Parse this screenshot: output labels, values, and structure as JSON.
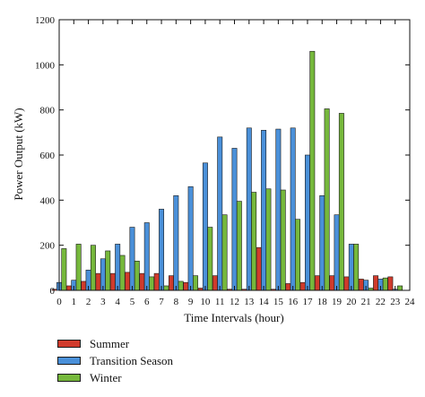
{
  "chart_data": {
    "type": "bar",
    "xlabel": "Time Intervals (hour)",
    "ylabel": "Power Output (kW)",
    "ylim": [
      0,
      1200
    ],
    "xlim": [
      0,
      24
    ],
    "yticks": [
      0,
      200,
      400,
      600,
      800,
      1000,
      1200
    ],
    "xticks": [
      0,
      1,
      2,
      3,
      4,
      5,
      6,
      7,
      8,
      9,
      10,
      11,
      12,
      13,
      14,
      15,
      16,
      17,
      18,
      19,
      20,
      21,
      22,
      23,
      24
    ],
    "legend_position": "bottom-left, below axes",
    "x": [
      0,
      1,
      2,
      3,
      4,
      5,
      6,
      7,
      8,
      9,
      10,
      11,
      12,
      13,
      14,
      15,
      16,
      17,
      18,
      19,
      20,
      21,
      22,
      23
    ],
    "series": [
      {
        "name": "Summer",
        "color": "#d03b2c",
        "values": [
          5,
          20,
          40,
          75,
          75,
          80,
          75,
          75,
          65,
          35,
          10,
          65,
          5,
          5,
          190,
          5,
          30,
          35,
          65,
          65,
          60,
          50,
          65,
          60
        ]
      },
      {
        "name": "Transition Season",
        "color": "#4a90d9",
        "values": [
          35,
          45,
          90,
          140,
          205,
          280,
          300,
          360,
          420,
          460,
          565,
          680,
          630,
          720,
          710,
          715,
          720,
          600,
          420,
          335,
          205,
          45,
          50,
          5
        ]
      },
      {
        "name": "Winter",
        "color": "#76b83c",
        "values": [
          185,
          205,
          200,
          175,
          155,
          130,
          60,
          20,
          40,
          65,
          280,
          335,
          395,
          435,
          450,
          445,
          315,
          1060,
          805,
          785,
          205,
          10,
          55,
          20
        ]
      }
    ]
  }
}
